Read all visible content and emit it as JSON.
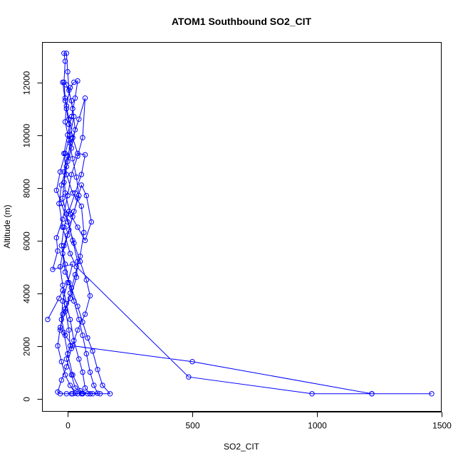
{
  "chart_data": {
    "type": "line",
    "title": "ATOM1 Southbound SO2_CIT",
    "xlabel": "SO2_CIT",
    "ylabel": "Altitude (m)",
    "xlim": [
      -100,
      1500
    ],
    "ylim": [
      -500,
      13500
    ],
    "x_ticks": [
      0,
      500,
      1000,
      1500
    ],
    "x_tick_labels": [
      "0",
      "500",
      "1000",
      "1500"
    ],
    "y_ticks": [
      0,
      2000,
      4000,
      6000,
      8000,
      10000,
      12000
    ],
    "y_tick_labels": [
      "0",
      "2000",
      "4000",
      "6000",
      "8000",
      "10000",
      "12000"
    ],
    "grid": false,
    "legend": "none",
    "series_color": "#0000ff",
    "markers": "open-circle",
    "series": [
      {
        "points": [
          [
            -80,
            3000
          ],
          [
            -35,
            3800
          ],
          [
            -20,
            4100
          ],
          [
            -10,
            3400
          ],
          [
            5,
            2600
          ],
          [
            10,
            2000
          ],
          [
            -5,
            1500
          ],
          [
            15,
            900
          ],
          [
            30,
            400
          ],
          [
            60,
            200
          ],
          [
            100,
            180
          ],
          [
            80,
            180
          ],
          [
            50,
            300
          ],
          [
            20,
            900
          ],
          [
            0,
            1700
          ],
          [
            -15,
            2500
          ],
          [
            -30,
            2600
          ],
          [
            -20,
            3200
          ],
          [
            10,
            3800
          ],
          [
            35,
            4600
          ],
          [
            40,
            5200
          ],
          [
            20,
            6000
          ],
          [
            -5,
            7000
          ],
          [
            -20,
            7600
          ],
          [
            -15,
            8200
          ],
          [
            0,
            9000
          ],
          [
            10,
            9700
          ],
          [
            5,
            10400
          ],
          [
            -5,
            11000
          ],
          [
            -10,
            11400
          ],
          [
            -15,
            12000
          ],
          [
            -10,
            12800
          ],
          [
            -15,
            13100
          ],
          [
            -5,
            13100
          ],
          [
            0,
            12400
          ],
          [
            5,
            11700
          ],
          [
            20,
            11000
          ],
          [
            30,
            10200
          ],
          [
            15,
            9500
          ],
          [
            -5,
            8800
          ],
          [
            -25,
            8100
          ],
          [
            -35,
            7400
          ],
          [
            -20,
            6500
          ],
          [
            10,
            5500
          ],
          [
            35,
            5000
          ],
          [
            485,
            820
          ],
          [
            980,
            180
          ],
          [
            1220,
            180
          ],
          [
            1460,
            180
          ],
          [
            1220,
            180
          ],
          [
            500,
            1400
          ],
          [
            20,
            2000
          ],
          [
            -10,
            2400
          ],
          [
            -25,
            3000
          ],
          [
            -20,
            3700
          ],
          [
            0,
            4400
          ],
          [
            20,
            5100
          ],
          [
            -60,
            4900
          ],
          [
            -40,
            5600
          ],
          [
            -45,
            6100
          ],
          [
            -20,
            6800
          ],
          [
            0,
            7700
          ],
          [
            15,
            8500
          ],
          [
            40,
            9200
          ],
          [
            60,
            9900
          ],
          [
            70,
            11400
          ],
          [
            45,
            10600
          ],
          [
            20,
            9900
          ],
          [
            0,
            9200
          ],
          [
            -15,
            8600
          ],
          [
            -10,
            7800
          ],
          [
            10,
            7000
          ],
          [
            40,
            6500
          ],
          [
            70,
            6000
          ],
          [
            95,
            6700
          ],
          [
            75,
            7700
          ],
          [
            55,
            8100
          ],
          [
            40,
            7600
          ],
          [
            20,
            6900
          ],
          [
            0,
            6200
          ],
          [
            -20,
            5500
          ],
          [
            -10,
            4800
          ],
          [
            15,
            4200
          ],
          [
            40,
            3500
          ],
          [
            60,
            2900
          ],
          [
            80,
            2300
          ],
          [
            100,
            1800
          ],
          [
            120,
            1100
          ],
          [
            140,
            500
          ],
          [
            170,
            180
          ],
          [
            130,
            180
          ],
          [
            90,
            180
          ],
          [
            70,
            400
          ],
          [
            60,
            1000
          ],
          [
            45,
            1500
          ],
          [
            25,
            2200
          ],
          [
            10,
            3000
          ],
          [
            -5,
            3600
          ],
          [
            -20,
            4300
          ],
          [
            -30,
            5000
          ],
          [
            -15,
            5800
          ],
          [
            5,
            6400
          ],
          [
            25,
            7100
          ],
          [
            45,
            7700
          ],
          [
            35,
            8400
          ],
          [
            20,
            9100
          ],
          [
            5,
            9800
          ],
          [
            -10,
            10500
          ],
          [
            -5,
            11100
          ],
          [
            10,
            11800
          ],
          [
            25,
            12000
          ],
          [
            40,
            12050
          ],
          [
            30,
            11400
          ],
          [
            15,
            10700
          ],
          [
            0,
            10000
          ],
          [
            -15,
            9300
          ],
          [
            -5,
            8500
          ],
          [
            20,
            7800
          ],
          [
            55,
            7300
          ],
          [
            65,
            6300
          ],
          [
            50,
            5400
          ],
          [
            30,
            4700
          ],
          [
            10,
            4000
          ],
          [
            -10,
            3300
          ],
          [
            -30,
            2700
          ],
          [
            -40,
            2000
          ],
          [
            -25,
            1400
          ],
          [
            -10,
            900
          ],
          [
            10,
            500
          ],
          [
            30,
            200
          ],
          [
            60,
            180
          ],
          [
            40,
            180
          ],
          [
            15,
            180
          ],
          [
            -5,
            180
          ],
          [
            -30,
            180
          ],
          [
            -40,
            250
          ],
          [
            -25,
            700
          ],
          [
            -5,
            1200
          ],
          [
            15,
            1900
          ],
          [
            40,
            2600
          ],
          [
            70,
            3200
          ],
          [
            90,
            3900
          ],
          [
            75,
            4500
          ],
          [
            50,
            5200
          ],
          [
            25,
            5900
          ],
          [
            0,
            6700
          ],
          [
            -25,
            7400
          ],
          [
            -45,
            7900
          ],
          [
            -30,
            8600
          ],
          [
            -10,
            9300
          ],
          [
            10,
            10000
          ],
          [
            25,
            10700
          ],
          [
            15,
            11300
          ],
          [
            -5,
            11900
          ],
          [
            -20,
            12000
          ],
          [
            -10,
            11300
          ],
          [
            5,
            10600
          ],
          [
            20,
            9900
          ],
          [
            40,
            9300
          ],
          [
            70,
            9250
          ],
          [
            55,
            8500
          ],
          [
            30,
            7800
          ],
          [
            5,
            7100
          ],
          [
            -15,
            6500
          ],
          [
            -25,
            5800
          ],
          [
            -10,
            5100
          ],
          [
            5,
            4400
          ],
          [
            25,
            3700
          ],
          [
            45,
            3000
          ],
          [
            60,
            2400
          ],
          [
            75,
            1700
          ],
          [
            90,
            1000
          ],
          [
            105,
            500
          ],
          [
            120,
            200
          ],
          [
            90,
            180
          ],
          [
            55,
            180
          ],
          [
            20,
            180
          ]
        ]
      }
    ]
  }
}
